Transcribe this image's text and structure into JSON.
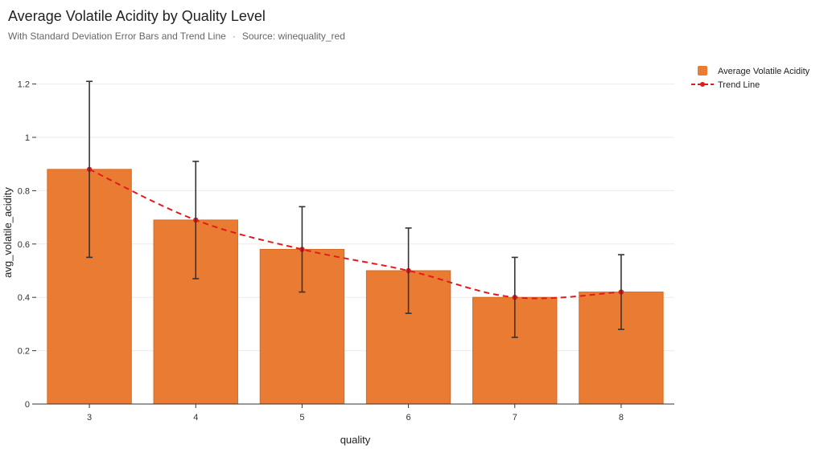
{
  "header": {
    "title": "Average Volatile Acidity by Quality Level",
    "subtitle": "With Standard Deviation Error Bars and Trend Line",
    "source": "Source: winequality_red",
    "separator": "·"
  },
  "chart_data": {
    "type": "bar",
    "title": "Average Volatile Acidity by Quality Level",
    "xlabel": "quality",
    "ylabel": "avg_volatile_acidity",
    "categories": [
      "3",
      "4",
      "5",
      "6",
      "7",
      "8"
    ],
    "ylim": [
      0,
      1.25
    ],
    "yticks": [
      0,
      0.2,
      0.4,
      0.6,
      0.8,
      1,
      1.2
    ],
    "ytick_labels": [
      "0",
      "0.2",
      "0.4",
      "0.6",
      "0.8",
      "1",
      "1.2"
    ],
    "grid": true,
    "legend_position": "top-right",
    "series": [
      {
        "name": "Average Volatile Acidity",
        "kind": "bar",
        "values": [
          0.88,
          0.69,
          0.58,
          0.5,
          0.4,
          0.42
        ],
        "error_low": [
          0.55,
          0.47,
          0.42,
          0.34,
          0.25,
          0.28
        ],
        "error_high": [
          1.21,
          0.91,
          0.74,
          0.66,
          0.55,
          0.56
        ],
        "color": "#E97B32"
      },
      {
        "name": "Trend Line",
        "kind": "line",
        "values": [
          0.88,
          0.69,
          0.58,
          0.5,
          0.4,
          0.42
        ],
        "color": "#E31A1C"
      }
    ]
  },
  "colors": {
    "bar": "#E97B32",
    "trend": "#E31A1C",
    "error": "#333333",
    "grid": "#EBEBEB"
  }
}
